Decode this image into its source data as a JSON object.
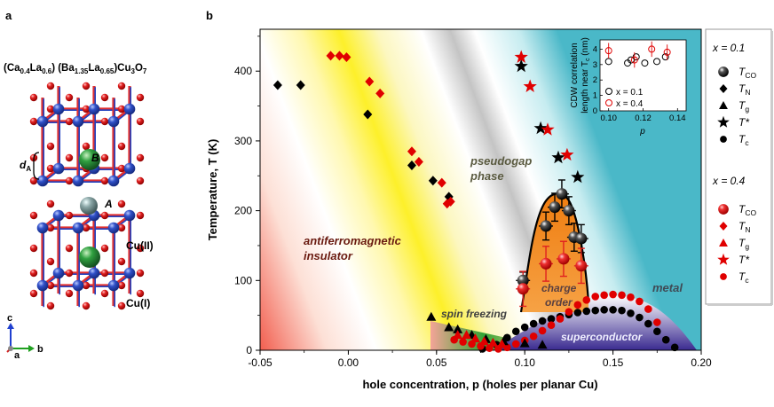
{
  "panel_a": {
    "label": "a",
    "formula": "(Ca0.4La0.6) (Ba1.35La0.65)Cu3O7",
    "formula_parts": {
      "p1": "(Ca",
      "s1": "0.4",
      "p2": "La",
      "s2": "0.6",
      "p3": ") (Ba",
      "s3": "1.35",
      "p4": "La",
      "s4": "0.65",
      "p5": ")Cu",
      "s5": "3",
      "p6": "O",
      "s6": "7"
    },
    "site_labels": {
      "dA": "d",
      "dA_sub": "A",
      "B": "B",
      "A": "A",
      "cu2": "Cu(II)",
      "cu1": "Cu(I)"
    },
    "axes": {
      "c": "c",
      "b": "b",
      "a": "a"
    },
    "colors": {
      "cu": "#3050c0",
      "o": "#d42020",
      "b_site": "#30a040",
      "a_site": "#8aa6a6"
    }
  },
  "chart_data": {
    "type": "scatter",
    "panel_label": "b",
    "title": "",
    "xlabel": "hole concentration, p (holes per planar Cu)",
    "ylabel": "Temperature, T (K)",
    "xlim": [
      -0.05,
      0.2
    ],
    "ylim": [
      0,
      460
    ],
    "xticks": [
      "-0.05",
      "0.00",
      "0.05",
      "0.10",
      "0.15",
      "0.20"
    ],
    "xtick_values": [
      -0.05,
      0.0,
      0.05,
      0.1,
      0.15,
      0.2
    ],
    "yticks": [
      "0",
      "100",
      "200",
      "300",
      "400"
    ],
    "ytick_values": [
      0,
      100,
      200,
      300,
      400
    ],
    "region_labels": [
      "antiferromagnetic insulator",
      "pseudogap phase",
      "charge order",
      "metal",
      "superconductor",
      "spin freezing"
    ],
    "region_label_lines": {
      "afm1": "antiferromagnetic",
      "afm2": "insulator",
      "pg1": "pseudogap",
      "pg2": "phase",
      "co1": "charge",
      "co2": "order",
      "metal": "metal",
      "sc": "superconductor",
      "sf": "spin freezing"
    },
    "series": [
      {
        "name": "TN (x = 0.1)",
        "marker": "diamond",
        "color": "#000000",
        "x": [
          -0.04,
          -0.027,
          0.011,
          0.036,
          0.048,
          0.057
        ],
        "y": [
          380,
          380,
          338,
          265,
          243,
          220
        ]
      },
      {
        "name": "Tg (x = 0.1)",
        "marker": "triangle",
        "color": "#000000",
        "x": [
          0.047,
          0.057,
          0.062,
          0.07,
          0.078,
          0.088,
          0.1,
          0.11
        ],
        "y": [
          48,
          33,
          30,
          22,
          16,
          13,
          10,
          8
        ]
      },
      {
        "name": "T* (x = 0.1)",
        "marker": "star",
        "color": "#000000",
        "x": [
          0.098,
          0.109,
          0.119,
          0.13
        ],
        "y": [
          407,
          318,
          276,
          248
        ]
      },
      {
        "name": "TCO (x = 0.1)",
        "marker": "sphere",
        "color": "#111111",
        "x": [
          0.099,
          0.112,
          0.117,
          0.121,
          0.125,
          0.128,
          0.132
        ],
        "y": [
          100,
          178,
          205,
          224,
          200,
          162,
          160
        ],
        "xerr": [
          0.004,
          0.004,
          0.004,
          0.004,
          0.004,
          0.004,
          0.004
        ],
        "yerr": [
          12,
          20,
          20,
          20,
          20,
          20,
          20
        ]
      },
      {
        "name": "Tc (x = 0.1)",
        "marker": "dot",
        "color": "#000000",
        "x": [
          0.076,
          0.084,
          0.09,
          0.095,
          0.1,
          0.105,
          0.11,
          0.115,
          0.12,
          0.125,
          0.13,
          0.135,
          0.14,
          0.145,
          0.15,
          0.155,
          0.16,
          0.165,
          0.17,
          0.175,
          0.18,
          0.185
        ],
        "y": [
          2,
          8,
          18,
          27,
          33,
          38,
          42,
          45,
          48,
          51,
          54,
          56,
          57,
          58,
          58,
          57,
          53,
          47,
          38,
          27,
          15,
          4
        ]
      },
      {
        "name": "TN (x = 0.4)",
        "marker": "diamond",
        "color": "#e00000",
        "x": [
          -0.01,
          -0.005,
          -0.001,
          0.012,
          0.018,
          0.036,
          0.04,
          0.053,
          0.056,
          0.058
        ],
        "y": [
          422,
          422,
          420,
          385,
          368,
          285,
          270,
          240,
          210,
          213
        ]
      },
      {
        "name": "Tg (x = 0.4)",
        "marker": "triangle",
        "color": "#e00000",
        "x": [
          0.062,
          0.067,
          0.072,
          0.077,
          0.082,
          0.087
        ],
        "y": [
          22,
          22,
          17,
          13,
          11,
          9
        ]
      },
      {
        "name": "T* (x = 0.4)",
        "marker": "star",
        "color": "#e00000",
        "x": [
          0.098,
          0.103,
          0.113,
          0.124
        ],
        "y": [
          420,
          378,
          316,
          280
        ]
      },
      {
        "name": "TCO (x = 0.4)",
        "marker": "sphere",
        "color": "#e02020",
        "x": [
          0.099,
          0.112,
          0.122,
          0.132
        ],
        "y": [
          88,
          124,
          131,
          121
        ],
        "xerr": [
          0.004,
          0.004,
          0.004,
          0.004
        ],
        "yerr": [
          25,
          25,
          25,
          25
        ]
      },
      {
        "name": "Tc (x = 0.4)",
        "marker": "dot",
        "color": "#e00000",
        "x": [
          0.06,
          0.065,
          0.07,
          0.075,
          0.08,
          0.085,
          0.09,
          0.095,
          0.1,
          0.105,
          0.11,
          0.115,
          0.12,
          0.125,
          0.13,
          0.135,
          0.14,
          0.145,
          0.15,
          0.155,
          0.16,
          0.165,
          0.17,
          0.175
        ],
        "y": [
          15,
          12,
          9,
          6,
          3,
          2,
          4,
          9,
          14,
          20,
          28,
          36,
          45,
          55,
          65,
          72,
          77,
          79,
          80,
          79,
          76,
          70,
          59,
          40
        ]
      }
    ],
    "legend": {
      "group1_title": "x = 0.1",
      "group2_title": "x = 0.4",
      "entries": [
        {
          "sym": "T",
          "sub": "CO"
        },
        {
          "sym": "T",
          "sub": "N"
        },
        {
          "sym": "T",
          "sub": "g"
        },
        {
          "sym": "T*",
          "sub": ""
        },
        {
          "sym": "T",
          "sub": "c"
        }
      ]
    },
    "inset": {
      "type": "scatter",
      "ylabel_line1": "CDW correlation",
      "ylabel_line2": "length near T",
      "ylabel_sub": "c",
      "ylabel_unit": " (nm)",
      "xlabel": "p",
      "xlim": [
        0.095,
        0.145
      ],
      "ylim": [
        0,
        4.6
      ],
      "xticks": [
        "0.10",
        "0.12",
        "0.14"
      ],
      "xtick_values": [
        0.1,
        0.12,
        0.14
      ],
      "yticks": [
        "0",
        "1",
        "2",
        "3",
        "4"
      ],
      "ytick_values": [
        0,
        1,
        2,
        3,
        4
      ],
      "series": [
        {
          "name": "x = 0.1",
          "marker": "open-circle",
          "color": "#000000",
          "x": [
            0.1,
            0.111,
            0.113,
            0.116,
            0.121,
            0.128,
            0.133
          ],
          "y": [
            3.2,
            3.1,
            3.3,
            3.5,
            3.1,
            3.2,
            3.5
          ]
        },
        {
          "name": "x = 0.4",
          "marker": "open-circle",
          "color": "#e00000",
          "x": [
            0.1,
            0.115,
            0.125,
            0.134
          ],
          "y": [
            3.9,
            3.3,
            4.0,
            3.8
          ],
          "yerr": [
            0.5,
            0.5,
            0.5,
            0.5
          ]
        }
      ],
      "legend_labels": [
        "x = 0.1",
        "x = 0.4"
      ]
    }
  }
}
